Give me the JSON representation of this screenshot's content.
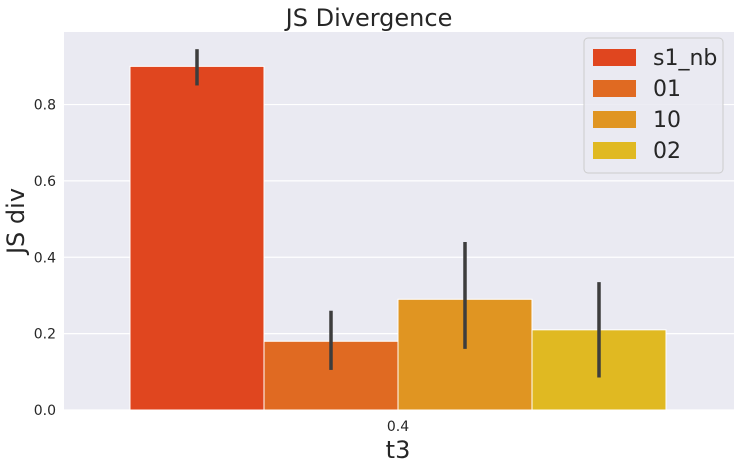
{
  "chart_data": {
    "type": "bar",
    "title": "JS Divergence",
    "xlabel": "t3",
    "ylabel": "JS div",
    "categories": [
      "0.4"
    ],
    "ylim": [
      0,
      0.99
    ],
    "yticks": [
      "0.0",
      "0.2",
      "0.4",
      "0.6",
      "0.8"
    ],
    "grid": true,
    "legend_position": "top-right",
    "series": [
      {
        "name": "s1_nb",
        "color": "#e0461f",
        "values": [
          0.9
        ],
        "ci": [
          [
            0.85,
            0.945
          ]
        ]
      },
      {
        "name": "01",
        "color": "#e06a22",
        "values": [
          0.18
        ],
        "ci": [
          [
            0.105,
            0.26
          ]
        ]
      },
      {
        "name": "10",
        "color": "#e09522",
        "values": [
          0.29
        ],
        "ci": [
          [
            0.16,
            0.44
          ]
        ]
      },
      {
        "name": "02",
        "color": "#e0b922",
        "values": [
          0.21
        ],
        "ci": [
          [
            0.085,
            0.335
          ]
        ]
      }
    ]
  }
}
